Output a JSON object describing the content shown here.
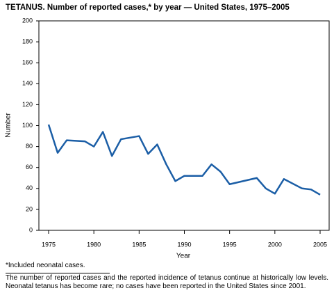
{
  "chart_data": {
    "type": "line",
    "title": "TETANUS. Number of reported cases,* by year — United States, 1975–2005",
    "x_label": "Year",
    "y_label": "Number",
    "x": [
      1975,
      1976,
      1977,
      1979,
      1980,
      1981,
      1982,
      1983,
      1985,
      1986,
      1987,
      1988,
      1989,
      1990,
      1992,
      1993,
      1994,
      1995,
      1998,
      1999,
      2000,
      2001,
      2003,
      2004,
      2005
    ],
    "series": [
      {
        "name": "Number",
        "color": "#1b5ea6",
        "values": [
          101,
          74,
          86,
          85,
          80,
          94,
          71,
          87,
          90,
          73,
          82,
          63,
          47,
          52,
          52,
          63,
          56,
          44,
          50,
          40,
          35,
          49,
          40,
          39,
          34
        ]
      }
    ],
    "xlim": [
      1975,
      2005
    ],
    "xticks": [
      1975,
      1980,
      1985,
      1990,
      1995,
      2000,
      2005
    ],
    "ylim": [
      0,
      200
    ],
    "yticks": [
      0,
      20,
      40,
      60,
      80,
      100,
      120,
      140,
      160,
      180,
      200
    ],
    "grid": false,
    "footnote": "*Included neonatal cases.",
    "note": "The number of reported cases and the reported incidence of tetanus continue at historically low levels. Neonatal tetanus has become rare; no cases have been reported in the United States since 2001."
  }
}
